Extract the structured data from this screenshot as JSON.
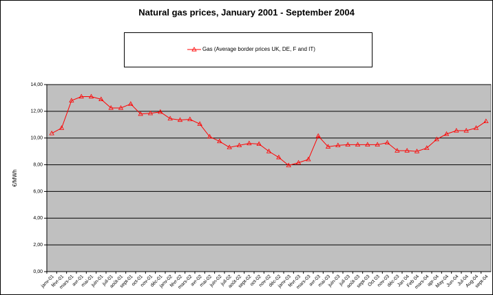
{
  "chart_data": {
    "type": "line",
    "title": "Natural gas prices, January 2001 - September 2004",
    "y_label": "€/MWh",
    "categories": [
      "janv-01",
      "févr-01",
      "mars-01",
      "avr-01",
      "mai-01",
      "juin-01",
      "juil-01",
      "août-01",
      "sept-01",
      "oct-01",
      "nov-01",
      "déc-01",
      "janv-02",
      "févr-02",
      "mars-02",
      "avr-02",
      "mai-02",
      "juin-02",
      "juil-02",
      "août-02",
      "sept-02",
      "oct-02",
      "nov-02",
      "déc-02",
      "janv-03",
      "févr-03",
      "mars-03",
      "avr-03",
      "mai-03",
      "juin-03",
      "juil-03",
      "août-03",
      "sept-03",
      "Oct 03",
      "nov-03",
      "déc-03",
      "Jan 04",
      "Feb 04",
      "mars-04",
      "apr-04",
      "May-04",
      "Jun-04",
      "Jul-04",
      "Aug-04",
      "sept-04"
    ],
    "series": [
      {
        "name": "Gas (Average border prices UK, DE, F and IT)",
        "color": "#ff0000",
        "values": [
          10.35,
          10.75,
          12.8,
          13.1,
          13.1,
          12.9,
          12.25,
          12.25,
          12.55,
          11.8,
          11.85,
          11.95,
          11.45,
          11.35,
          11.4,
          11.05,
          10.1,
          9.75,
          9.3,
          9.45,
          9.6,
          9.55,
          9.0,
          8.55,
          7.95,
          8.15,
          8.4,
          10.15,
          9.35,
          9.45,
          9.5,
          9.5,
          9.5,
          9.5,
          9.65,
          9.05,
          9.05,
          9.0,
          9.25,
          9.9,
          10.3,
          10.55,
          10.55,
          10.75,
          11.25
        ]
      }
    ],
    "ylim": [
      0,
      14
    ],
    "yticks": [
      {
        "value": 0,
        "label": "0,00"
      },
      {
        "value": 2,
        "label": "2,00"
      },
      {
        "value": 4,
        "label": "4,00"
      },
      {
        "value": 6,
        "label": "6,00"
      },
      {
        "value": 8,
        "label": "8,00"
      },
      {
        "value": 10,
        "label": "10,00"
      },
      {
        "value": 12,
        "label": "12,00"
      },
      {
        "value": 14,
        "label": "14,00"
      }
    ],
    "grid": true,
    "legend": "top"
  }
}
